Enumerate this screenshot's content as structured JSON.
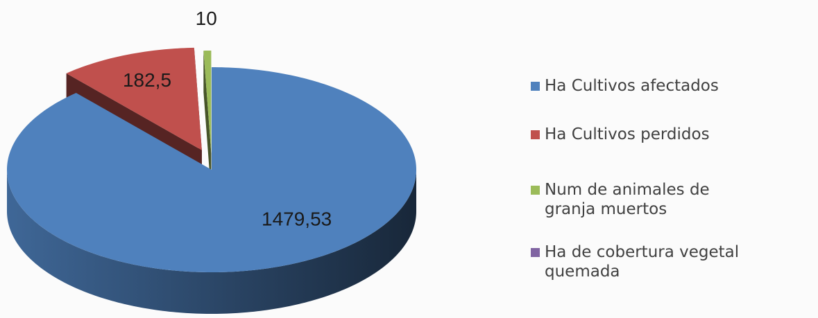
{
  "chart_data": {
    "type": "pie3d",
    "categories": [
      "Ha Cultivos afectados",
      "Ha Cultivos perdidos",
      "Num de animales de granja muertos",
      "Ha de cobertura vegetal quemada"
    ],
    "values": [
      1479.53,
      182.5,
      10,
      0
    ],
    "value_labels": [
      "1479,53",
      "182,5",
      "10",
      null
    ],
    "colors": [
      "#4f81bd",
      "#c0504d",
      "#9bbb59",
      "#8064a2"
    ],
    "legend": "right"
  }
}
